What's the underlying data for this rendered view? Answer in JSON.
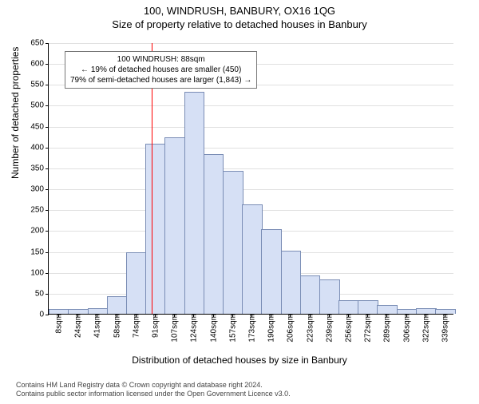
{
  "title_main": "100, WINDRUSH, BANBURY, OX16 1QG",
  "title_sub": "Size of property relative to detached houses in Banbury",
  "ylabel": "Number of detached properties",
  "xlabel": "Distribution of detached houses by size in Banbury",
  "ylim": [
    0,
    650
  ],
  "ytick_step": 50,
  "bar_color": "#d6e0f5",
  "bar_border": "#7a8db5",
  "grid_color": "#e0e0e0",
  "marker_color": "#ff0000",
  "marker_x_value": 88,
  "x_start": 8,
  "x_step": 16.5,
  "x_tick_labels": [
    "8sqm",
    "24sqm",
    "41sqm",
    "58sqm",
    "74sqm",
    "91sqm",
    "107sqm",
    "124sqm",
    "140sqm",
    "157sqm",
    "173sqm",
    "190sqm",
    "206sqm",
    "223sqm",
    "239sqm",
    "256sqm",
    "272sqm",
    "289sqm",
    "306sqm",
    "322sqm",
    "339sqm"
  ],
  "values": [
    10,
    10,
    12,
    40,
    145,
    405,
    420,
    530,
    380,
    340,
    260,
    200,
    150,
    90,
    80,
    30,
    30,
    20,
    10,
    12,
    10
  ],
  "info_box": {
    "line1": "100 WINDRUSH: 88sqm",
    "line2": "← 19% of detached houses are smaller (450)",
    "line3": "79% of semi-detached houses are larger (1,843) →"
  },
  "footer": {
    "line1": "Contains HM Land Registry data © Crown copyright and database right 2024.",
    "line2": "Contains public sector information licensed under the Open Government Licence v3.0."
  },
  "title_fontsize": 13,
  "label_fontsize": 12,
  "tick_fontsize": 10
}
